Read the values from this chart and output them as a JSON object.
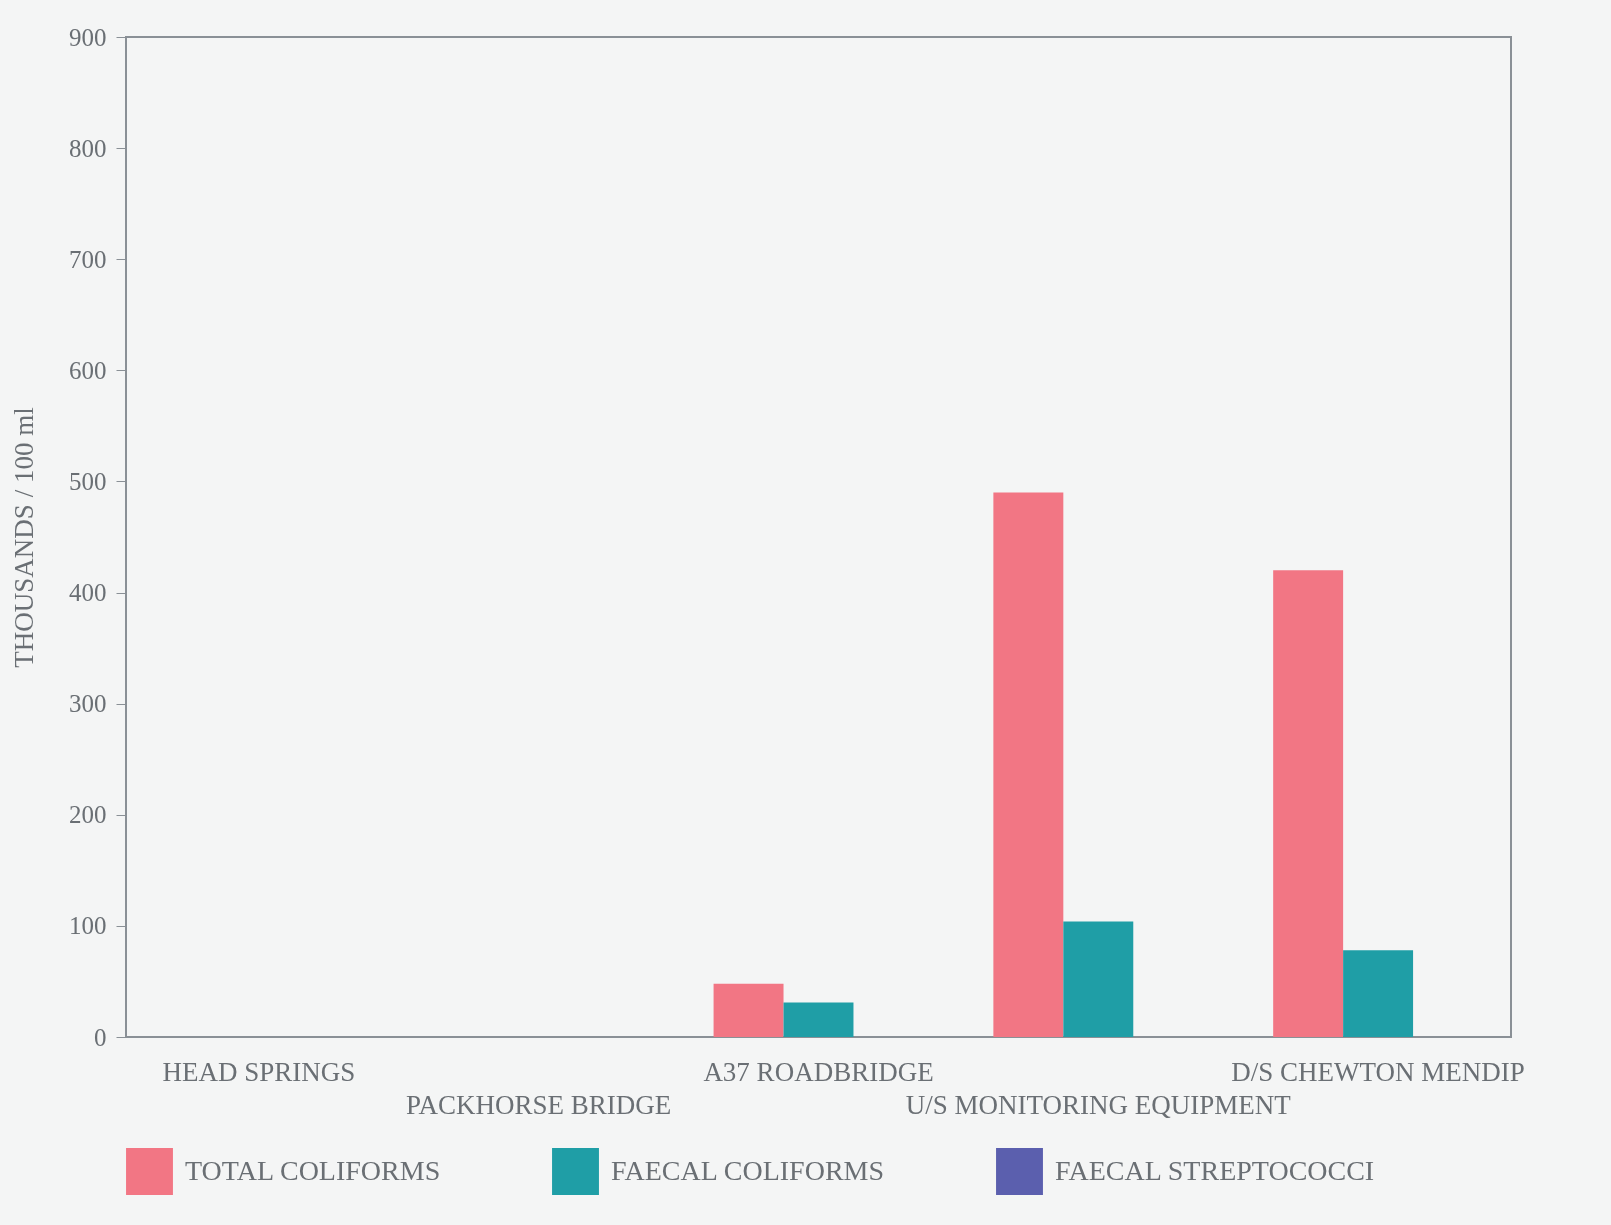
{
  "chart_data": {
    "type": "bar",
    "ylabel": "THOUSANDS / 100 ml",
    "categories": [
      "HEAD SPRINGS",
      "PACKHORSE BRIDGE",
      "A37 ROADBRIDGE",
      "U/S MONITORING EQUIPMENT",
      "D/S CHEWTON MENDIP"
    ],
    "series": [
      {
        "name": "TOTAL COLIFORMS",
        "color": "#f27684",
        "values": [
          0,
          0,
          48,
          490,
          420
        ]
      },
      {
        "name": "FAECAL COLIFORMS",
        "color": "#1f9ea6",
        "values": [
          0,
          0,
          31,
          104,
          78
        ]
      },
      {
        "name": "FAECAL STREPTOCOCCI",
        "color": "#5b5fae",
        "values": [
          0,
          0,
          0,
          0,
          0
        ]
      }
    ],
    "ylim": [
      0,
      900
    ],
    "yticks": [
      0,
      100,
      200,
      300,
      400,
      500,
      600,
      700,
      800,
      900
    ],
    "grid": false,
    "legend": "bottom"
  }
}
